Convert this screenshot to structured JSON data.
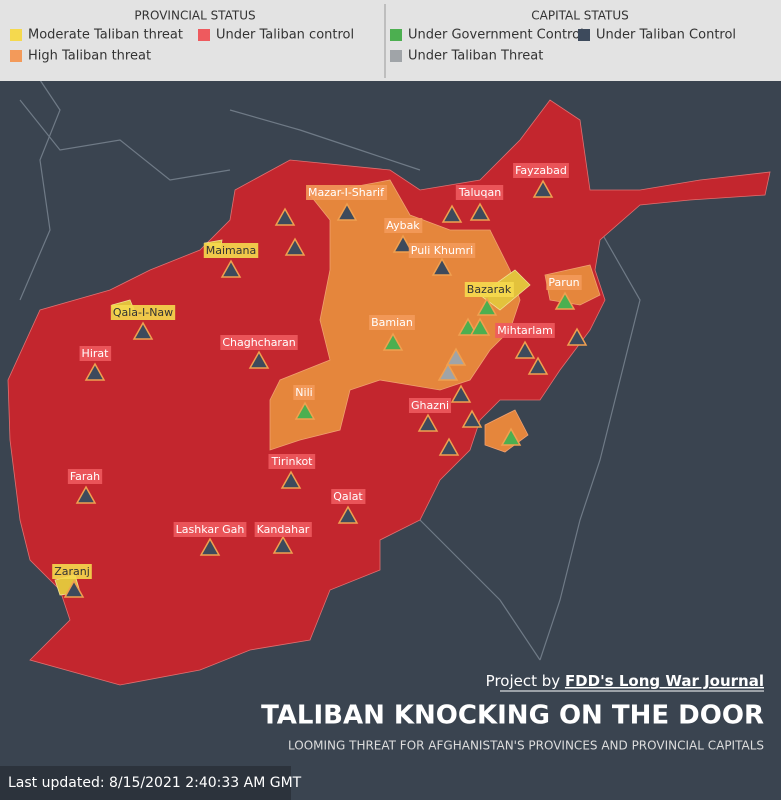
{
  "legend": {
    "provincial": {
      "title": "PROVINCIAL STATUS",
      "items": [
        {
          "key": "moderate",
          "label": "Moderate Taliban threat",
          "color": "#f5d94e",
          "map_color": "#e3c23c"
        },
        {
          "key": "control",
          "label": "Under Taliban control",
          "color": "#ee5a5e",
          "map_color": "#c3262e"
        },
        {
          "key": "high",
          "label": "High Taliban threat",
          "color": "#f39a5a",
          "map_color": "#e5863c"
        }
      ]
    },
    "capital": {
      "title": "CAPITAL STATUS",
      "items": [
        {
          "key": "gov",
          "label": "Under Government Control",
          "color": "#4caf50"
        },
        {
          "key": "taliban",
          "label": "Under Taliban Control",
          "color": "#3d4a5c"
        },
        {
          "key": "threat",
          "label": "Under Taliban Threat",
          "color": "#a0a4a8"
        }
      ]
    }
  },
  "labels": [
    {
      "name": "Fayzabad",
      "province": "control"
    },
    {
      "name": "Mazar-I-Sharif",
      "province": "high"
    },
    {
      "name": "Taluqan",
      "province": "control"
    },
    {
      "name": "Aybak",
      "province": "high"
    },
    {
      "name": "Puli Khumri",
      "province": "high"
    },
    {
      "name": "Maimana",
      "province": "moderate"
    },
    {
      "name": "Bazarak",
      "province": "moderate"
    },
    {
      "name": "Parun",
      "province": "high"
    },
    {
      "name": "Qala-I-Naw",
      "province": "moderate"
    },
    {
      "name": "Bamian",
      "province": "high"
    },
    {
      "name": "Mihtarlam",
      "province": "control"
    },
    {
      "name": "Chaghcharan",
      "province": "control"
    },
    {
      "name": "Hirat",
      "province": "control"
    },
    {
      "name": "Nili",
      "province": "high"
    },
    {
      "name": "Ghazni",
      "province": "control"
    },
    {
      "name": "Tirinkot",
      "province": "control"
    },
    {
      "name": "Farah",
      "province": "control"
    },
    {
      "name": "Qalat",
      "province": "control"
    },
    {
      "name": "Lashkar Gah",
      "province": "control"
    },
    {
      "name": "Kandahar",
      "province": "control"
    },
    {
      "name": "Zaranj",
      "province": "moderate"
    }
  ],
  "markers": [
    "taliban",
    "taliban",
    "taliban",
    "taliban",
    "taliban",
    "taliban",
    "taliban",
    "taliban",
    "taliban",
    "gov",
    "gov",
    "taliban",
    "gov",
    "gov",
    "gov",
    "taliban",
    "taliban",
    "threat",
    "threat",
    "taliban",
    "taliban",
    "taliban",
    "gov",
    "taliban",
    "taliban",
    "taliban",
    "gov",
    "taliban",
    "taliban",
    "taliban",
    "taliban",
    "taliban",
    "taliban",
    "taliban"
  ],
  "credit": {
    "prefix": "Project by",
    "source": "FDD's Long War Journal"
  },
  "title": "TALIBAN KNOCKING ON THE  DOOR",
  "subtitle": "LOOMING THREAT FOR AFGHANISTAN'S PROVINCES AND PROVINCIAL CAPITALS",
  "updated": "Last updated: 8/15/2021 2:40:33 AM GMT"
}
